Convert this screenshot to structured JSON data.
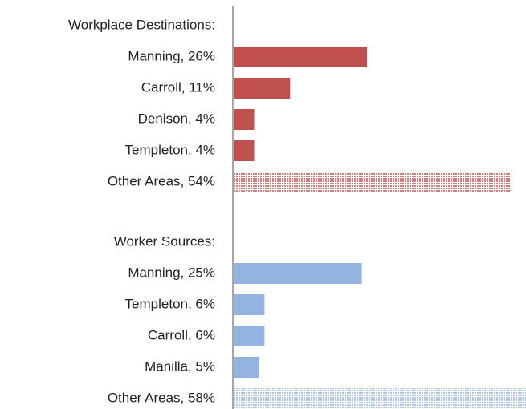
{
  "chart_data": [
    {
      "type": "bar",
      "orientation": "horizontal",
      "title": "Workplace Destinations:",
      "categories": [
        "Manning, 26%",
        "Carroll, 11%",
        "Denison, 4%",
        "Templeton, 4%",
        "Other Areas, 54%"
      ],
      "values": [
        26,
        11,
        4,
        4,
        54
      ],
      "color": "#c0504d",
      "patterned": [
        false,
        false,
        false,
        false,
        true
      ],
      "xlim": [
        0,
        57
      ]
    },
    {
      "type": "bar",
      "orientation": "horizontal",
      "title": "Worker Sources:",
      "categories": [
        "Manning, 25%",
        "Templeton, 6%",
        "Carroll, 6%",
        "Manilla, 5%",
        "Other Areas, 58%"
      ],
      "values": [
        25,
        6,
        6,
        5,
        58
      ],
      "color": "#95b3e0",
      "patterned": [
        false,
        false,
        false,
        false,
        true
      ],
      "xlim": [
        0,
        57
      ]
    }
  ]
}
